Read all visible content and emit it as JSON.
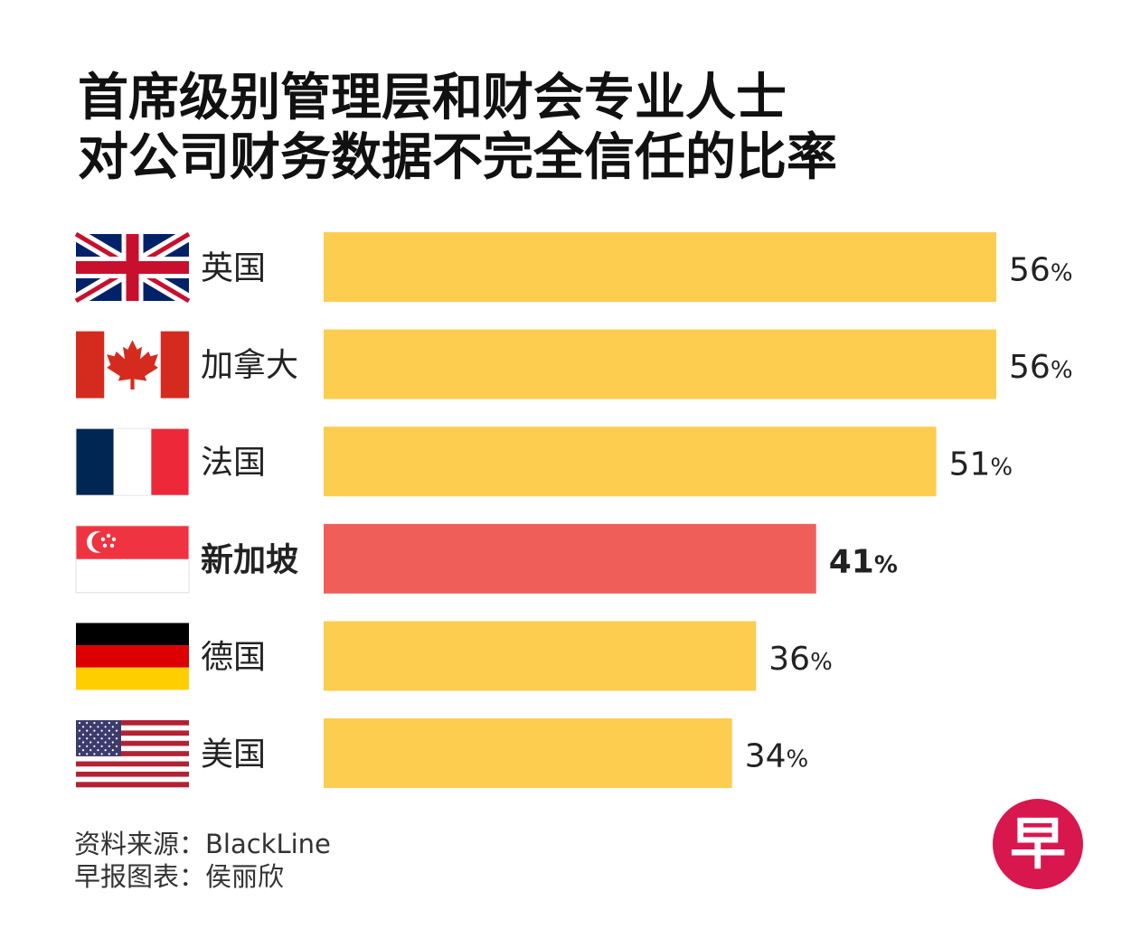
{
  "title_lines": [
    "首席级别管理层和财会专业人士",
    "对公司财务数据不完全信任的比率"
  ],
  "chart_data": {
    "type": "bar",
    "orientation": "horizontal",
    "title": "首席级别管理层和财会专业人士对公司财务数据不完全信任的比率",
    "categories": [
      "英国",
      "加拿大",
      "法国",
      "新加坡",
      "德国",
      "美国"
    ],
    "values": [
      56,
      56,
      51,
      41,
      36,
      34
    ],
    "value_suffix": "%",
    "highlight": "新加坡",
    "flags": [
      "uk-flag-icon",
      "canada-flag-icon",
      "france-flag-icon",
      "singapore-flag-icon",
      "germany-flag-icon",
      "usa-flag-icon"
    ],
    "colors": {
      "bar": "#fdcd50",
      "highlight": "#ef5e58"
    },
    "xlim": [
      0,
      56
    ]
  },
  "footer": {
    "source": "资料来源：BlackLine",
    "credit": "早报图表：侯丽欣"
  },
  "logo": {
    "name": "zaobao-logo-icon",
    "text": "早",
    "color": "#d8174f"
  }
}
